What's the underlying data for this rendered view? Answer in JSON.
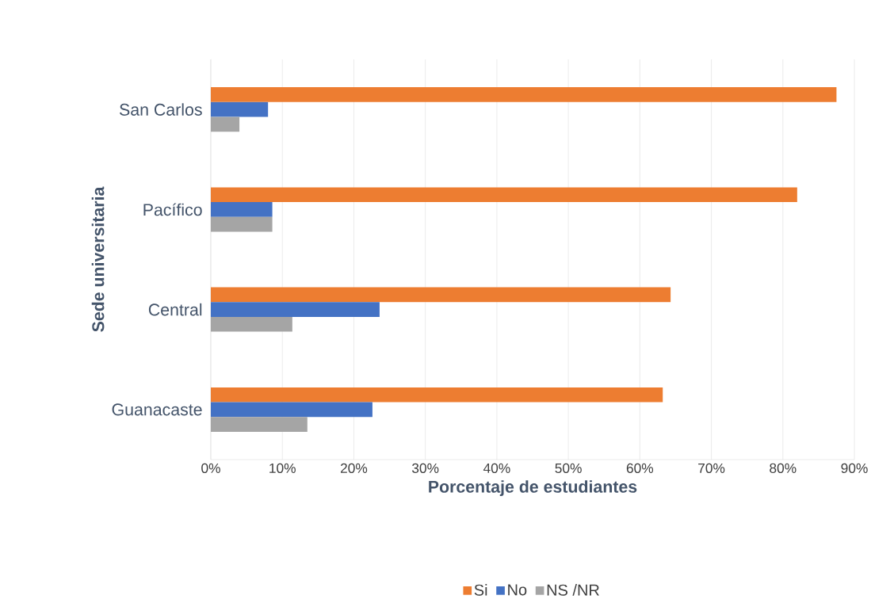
{
  "chart_data": {
    "type": "bar",
    "orientation": "horizontal",
    "xlabel": "Porcentaje de estudiantes",
    "ylabel": "Sede universitaria",
    "categories": [
      "San Carlos",
      "Pacífico",
      "Central",
      "Guanacaste"
    ],
    "series": [
      {
        "name": "Si",
        "color": "#ed7d31",
        "values": [
          87.5,
          82,
          64.3,
          63.2
        ]
      },
      {
        "name": "No",
        "color": "#4472c4",
        "values": [
          8,
          8.6,
          23.6,
          22.6
        ]
      },
      {
        "name": "NS /NR",
        "color": "#a5a5a5",
        "values": [
          4,
          8.6,
          11.4,
          13.5
        ]
      }
    ],
    "xlim": [
      0,
      90
    ],
    "xticks": [
      {
        "value": 0,
        "label": "0%"
      },
      {
        "value": 10,
        "label": "10%"
      },
      {
        "value": 20,
        "label": "20%"
      },
      {
        "value": 30,
        "label": "30%"
      },
      {
        "value": 40,
        "label": "40%"
      },
      {
        "value": 50,
        "label": "50%"
      },
      {
        "value": 60,
        "label": "60%"
      },
      {
        "value": 70,
        "label": "70%"
      },
      {
        "value": 80,
        "label": "80%"
      },
      {
        "value": 90,
        "label": "90%"
      }
    ],
    "grid": "x",
    "legend": "bottom"
  }
}
